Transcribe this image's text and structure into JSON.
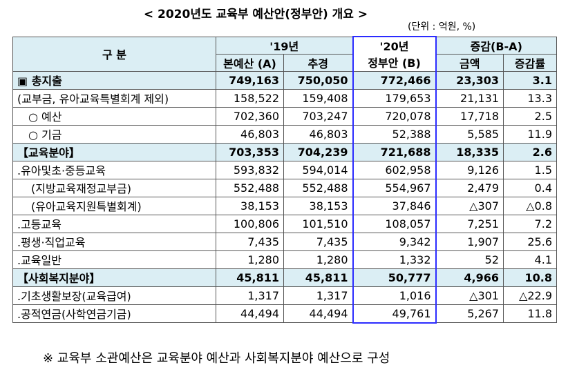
{
  "title": "< 2020년도 교육부 예산안(정부안) 개요 >",
  "unit": "(단위 : 억원, %)",
  "header": {
    "category": "구 분",
    "y19": "'19년",
    "main": "본예산 (A)",
    "supp": "추경",
    "y20": "'20년",
    "y20_sub": "정부안 (B)",
    "change": "증감(B-A)",
    "amount": "금액",
    "rate": "증감률"
  },
  "table": {
    "rows": [
      [
        "▣ 총지출",
        "749,163",
        "750,050",
        "772,466",
        "23,303",
        "3.1"
      ],
      [
        "(교부금, 유아교육특별회계 제외)",
        "158,522",
        "159,408",
        "179,653",
        "21,131",
        "13.3"
      ],
      [
        "○ 예산",
        "702,360",
        "703,247",
        "720,078",
        "17,718",
        "2.5"
      ],
      [
        "○ 기금",
        "46,803",
        "46,803",
        "52,388",
        "5,585",
        "11.9"
      ],
      [
        "【교육분야】",
        "703,353",
        "704,239",
        "721,688",
        "18,335",
        "2.6"
      ],
      [
        ".유아및초·중등교육",
        "593,832",
        "594,014",
        "602,958",
        "9,126",
        "1.5"
      ],
      [
        "(지방교육재정교부금)",
        "552,488",
        "552,488",
        "554,967",
        "2,479",
        "0.4"
      ],
      [
        "(유아교육지원특별회계)",
        "38,153",
        "38,153",
        "37,846",
        "△307",
        "△0.8"
      ],
      [
        ".고등교육",
        "100,806",
        "101,510",
        "108,057",
        "7,251",
        "7.2"
      ],
      [
        ".평생·직업교육",
        "7,435",
        "7,435",
        "9,342",
        "1,907",
        "25.6"
      ],
      [
        ".교육일반",
        "1,280",
        "1,280",
        "1,332",
        "52",
        "4.1"
      ],
      [
        "【사회복지분야】",
        "45,811",
        "45,811",
        "50,777",
        "4,966",
        "10.8"
      ],
      [
        ".기초생활보장(교육급여)",
        "1,317",
        "1,317",
        "1,016",
        "△301",
        "△22.9"
      ],
      [
        ".공적연금(사학연금기금)",
        "44,494",
        "44,494",
        "49,761",
        "5,267",
        "11.8"
      ]
    ]
  },
  "footnote": "※ 교육부 소관예산은 교육분야 예산과 사회복지분야 예산으로 구성"
}
